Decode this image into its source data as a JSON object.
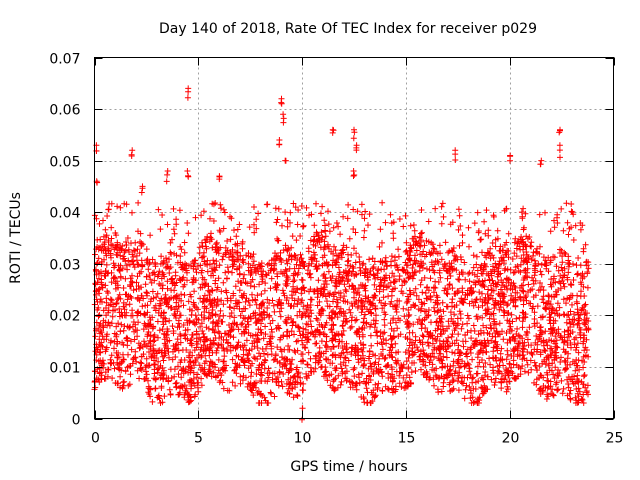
{
  "chart_data": {
    "type": "scatter",
    "title": "Day 140 of 2018, Rate Of TEC Index for receiver p029",
    "xlabel": "GPS time / hours",
    "ylabel": "ROTI / TECUs",
    "xlim": [
      0,
      25
    ],
    "ylim": [
      0,
      0.07
    ],
    "x_ticks": [
      0,
      5,
      10,
      15,
      20,
      25
    ],
    "x_tick_labels": [
      "0",
      "5",
      "10",
      "15",
      "20",
      "25"
    ],
    "y_ticks": [
      0,
      0.01,
      0.02,
      0.03,
      0.04,
      0.05,
      0.06,
      0.07
    ],
    "y_tick_labels": [
      "0",
      "0.01",
      "0.02",
      "0.03",
      "0.04",
      "0.05",
      "0.06",
      "0.07"
    ],
    "grid": true,
    "marker": "+",
    "series": [
      {
        "name": "ROTI",
        "color": "#ff0000",
        "data_range_x": [
          0,
          23.8
        ],
        "typical_range_y": [
          0.005,
          0.033
        ],
        "notable_points": [
          {
            "x": 0.1,
            "y": 0.053
          },
          {
            "x": 0.1,
            "y": 0.046
          },
          {
            "x": 1.8,
            "y": 0.052
          },
          {
            "x": 2.3,
            "y": 0.045
          },
          {
            "x": 3.5,
            "y": 0.048
          },
          {
            "x": 4.5,
            "y": 0.064
          },
          {
            "x": 4.5,
            "y": 0.048
          },
          {
            "x": 6.0,
            "y": 0.047
          },
          {
            "x": 9.0,
            "y": 0.062
          },
          {
            "x": 9.1,
            "y": 0.059
          },
          {
            "x": 8.9,
            "y": 0.054
          },
          {
            "x": 9.2,
            "y": 0.05
          },
          {
            "x": 11.5,
            "y": 0.056
          },
          {
            "x": 12.5,
            "y": 0.056
          },
          {
            "x": 12.6,
            "y": 0.053
          },
          {
            "x": 12.5,
            "y": 0.048
          },
          {
            "x": 17.4,
            "y": 0.052
          },
          {
            "x": 20.0,
            "y": 0.051
          },
          {
            "x": 21.5,
            "y": 0.05
          },
          {
            "x": 22.4,
            "y": 0.056
          },
          {
            "x": 22.4,
            "y": 0.053
          },
          {
            "x": 10.0,
            "y": 0.002
          }
        ]
      }
    ]
  }
}
